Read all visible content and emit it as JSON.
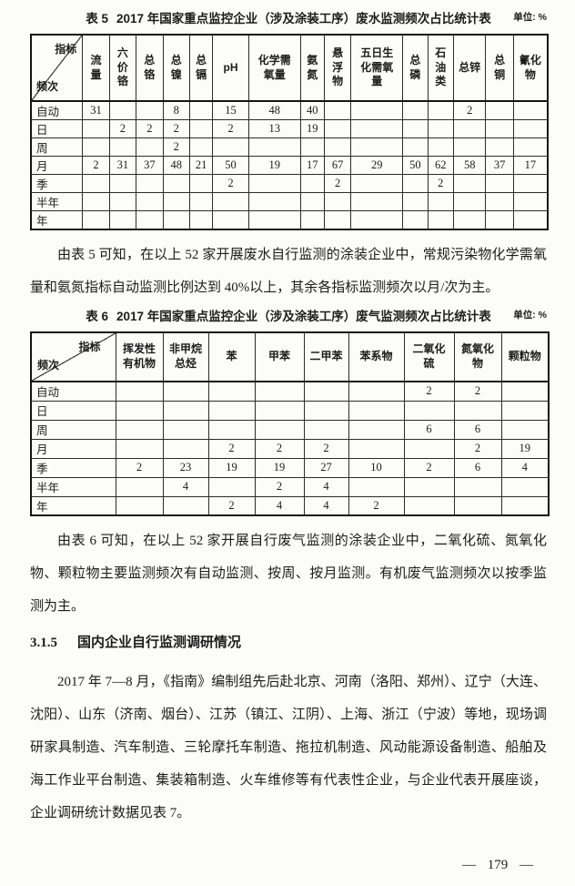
{
  "table5": {
    "label": "表 5",
    "title": "2017 年国家重点监控企业（涉及涂装工序）废水监测频次占比统计表",
    "unit": "单位: %",
    "corner_top": "指标",
    "corner_bottom": "频次",
    "columns": [
      "流量",
      "六价铬",
      "总铬",
      "总镍",
      "总镉",
      "pH",
      "化学需氧量",
      "氨氮",
      "悬浮物",
      "五日生化需氧量",
      "总磷",
      "石油类",
      "总锌",
      "总铜",
      "氰化物"
    ],
    "rows": [
      {
        "label": "自动",
        "cells": [
          "31",
          "",
          "",
          "8",
          "",
          "15",
          "48",
          "40",
          "",
          "",
          "",
          "",
          "2",
          "",
          ""
        ]
      },
      {
        "label": "日",
        "cells": [
          "",
          "2",
          "2",
          "2",
          "",
          "2",
          "13",
          "19",
          "",
          "",
          "",
          "",
          "",
          "",
          ""
        ]
      },
      {
        "label": "周",
        "cells": [
          "",
          "",
          "",
          "2",
          "",
          "",
          "",
          "",
          "",
          "",
          "",
          "",
          "",
          "",
          ""
        ]
      },
      {
        "label": "月",
        "cells": [
          "2",
          "31",
          "37",
          "48",
          "21",
          "50",
          "19",
          "17",
          "67",
          "29",
          "50",
          "62",
          "58",
          "37",
          "17"
        ]
      },
      {
        "label": "季",
        "cells": [
          "",
          "",
          "",
          "",
          "",
          "2",
          "",
          "",
          "2",
          "",
          "",
          "2",
          "",
          "",
          ""
        ]
      },
      {
        "label": "半年",
        "cells": [
          "",
          "",
          "",
          "",
          "",
          "",
          "",
          "",
          "",
          "",
          "",
          "",
          "",
          "",
          ""
        ]
      },
      {
        "label": "年",
        "cells": [
          "",
          "",
          "",
          "",
          "",
          "",
          "",
          "",
          "",
          "",
          "",
          "",
          "",
          "",
          ""
        ]
      }
    ]
  },
  "table6": {
    "label": "表 6",
    "title": "2017 年国家重点监控企业（涉及涂装工序）废气监测频次占比统计表",
    "unit": "单位: %",
    "corner_top": "指标",
    "corner_bottom": "频次",
    "columns": [
      "挥发性有机物",
      "非甲烷总烃",
      "苯",
      "甲苯",
      "二甲苯",
      "苯系物",
      "二氧化硫",
      "氮氧化物",
      "颗粒物"
    ],
    "rows": [
      {
        "label": "自动",
        "cells": [
          "",
          "",
          "",
          "",
          "",
          "",
          "2",
          "2",
          ""
        ]
      },
      {
        "label": "日",
        "cells": [
          "",
          "",
          "",
          "",
          "",
          "",
          "",
          "",
          ""
        ]
      },
      {
        "label": "周",
        "cells": [
          "",
          "",
          "",
          "",
          "",
          "",
          "6",
          "6",
          ""
        ]
      },
      {
        "label": "月",
        "cells": [
          "",
          "",
          "2",
          "2",
          "2",
          "",
          "",
          "2",
          "19"
        ]
      },
      {
        "label": "季",
        "cells": [
          "2",
          "23",
          "19",
          "19",
          "27",
          "10",
          "2",
          "6",
          "4"
        ]
      },
      {
        "label": "半年",
        "cells": [
          "",
          "4",
          "",
          "2",
          "4",
          "",
          "",
          "",
          ""
        ]
      },
      {
        "label": "年",
        "cells": [
          "",
          "",
          "2",
          "4",
          "4",
          "2",
          "",
          "",
          ""
        ]
      }
    ]
  },
  "paragraphs": {
    "after_table5": "由表 5 可知，在以上 52 家开展废水自行监测的涂装企业中，常规污染物化学需氧量和氨氮指标自动监测比例达到 40%以上，其余各指标监测频次以月/次为主。",
    "after_table6": "由表 6 可知，在以上 52 家开展自行废气监测的涂装企业中，二氧化硫、氮氧化物、颗粒物主要监测频次有自动监测、按周、按月监测。有机废气监测频次以按季监测为主。",
    "survey": "2017 年 7—8 月，《指南》编制组先后赴北京、河南（洛阳、郑州）、辽宁（大连、沈阳）、山东（济南、烟台）、江苏（镇江、江阴）、上海、浙江（宁波）等地，现场调研家具制造、汽车制造、三轮摩托车制造、拖拉机制造、风动能源设备制造、船舶及海工作业平台制造、集装箱制造、火车维修等有代表性企业，与企业代表开展座谈，企业调研统计数据见表 7。"
  },
  "section": {
    "number": "3.1.5",
    "title": "国内企业自行监测调研情况"
  },
  "footer": {
    "page_number_display": "— 179 —"
  }
}
